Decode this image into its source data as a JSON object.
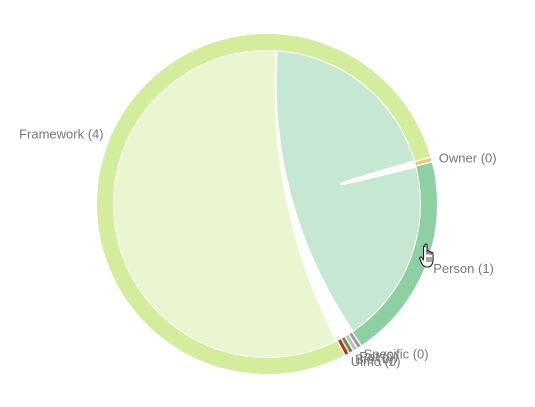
{
  "chart_data": {
    "type": "chord",
    "groups": [
      {
        "name": "Framework (4)",
        "value": 4,
        "color": "#d4ed9c",
        "chord_color": "#e9f6cf"
      },
      {
        "name": "Owner (0)",
        "value": 0,
        "color": "#f5c27a"
      },
      {
        "name": "Person (1)",
        "value": 1,
        "color": "#8ecfa4",
        "chord_color": "#c6e8d2"
      },
      {
        "name": "Specific (0)",
        "value": 0,
        "color": "#9e9e9e"
      },
      {
        "name": "Pet (0)",
        "value": 0,
        "color": "#bdbdbd"
      },
      {
        "name": "Bio (0)",
        "value": 0,
        "color": "#6b8f3e"
      },
      {
        "name": "Ulmo (0)",
        "value": 0,
        "color": "#c62828"
      }
    ],
    "links": [
      {
        "source": "Framework (4)",
        "target": "Framework (4)",
        "value": 3
      },
      {
        "source": "Framework (4)",
        "target": "Person (1)",
        "value": 1
      }
    ]
  }
}
